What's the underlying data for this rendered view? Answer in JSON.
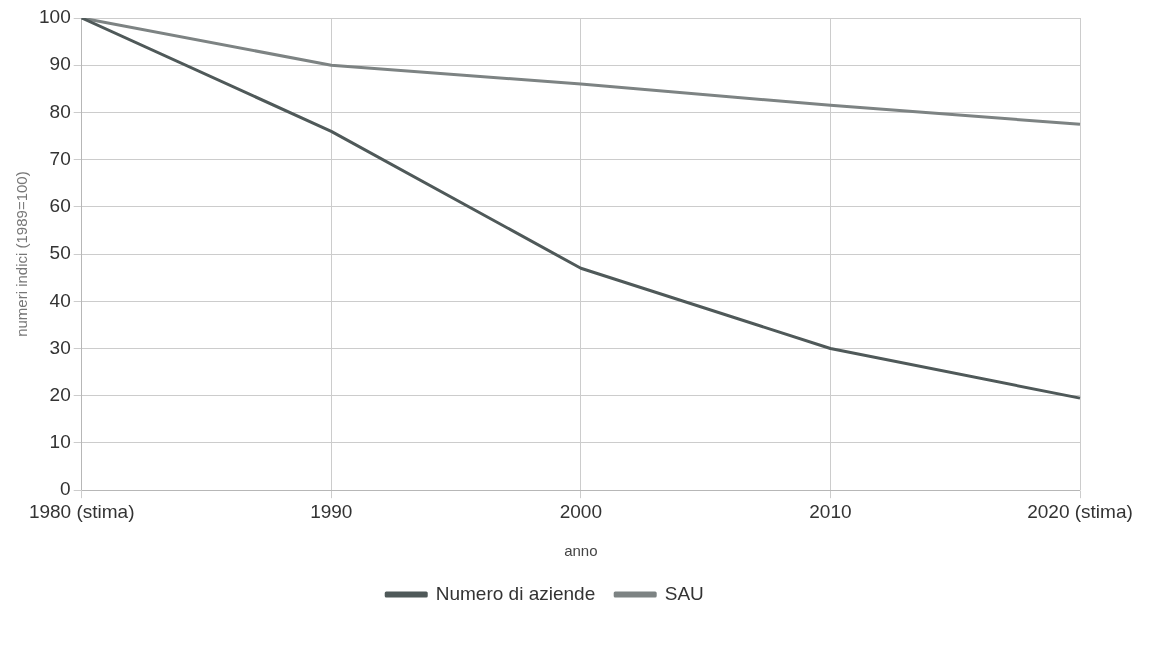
{
  "chart_data": {
    "type": "line",
    "xlabel": "anno",
    "ylabel": "numeri indici (1989=100)",
    "categories": [
      "1980 (stima)",
      "1990",
      "2000",
      "2010",
      "2020 (stima)"
    ],
    "series": [
      {
        "name": "Numero di aziende",
        "color": "#4f5959",
        "values": [
          100,
          76,
          47,
          30,
          19.5
        ]
      },
      {
        "name": "SAU",
        "color": "#7d8383",
        "values": [
          100,
          90,
          86,
          81.5,
          77.5
        ]
      }
    ],
    "ylim": [
      0,
      100
    ],
    "yticks": [
      0,
      10,
      20,
      30,
      40,
      50,
      60,
      70,
      80,
      90,
      100
    ],
    "grid": true,
    "legend": "bottom",
    "marker": "none",
    "line_style": "solid"
  }
}
